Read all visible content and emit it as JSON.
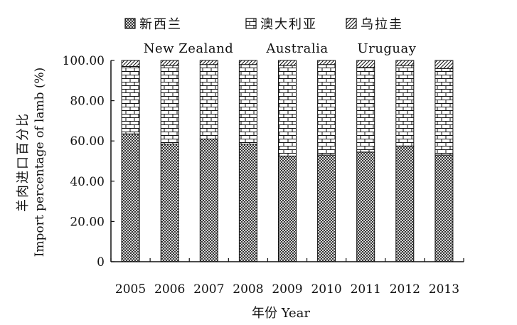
{
  "chart_data": {
    "type": "bar",
    "stacked": true,
    "categories": [
      "2005",
      "2006",
      "2007",
      "2008",
      "2009",
      "2010",
      "2011",
      "2012",
      "2013"
    ],
    "series": [
      {
        "name": "新西兰",
        "name_en": "New Zealand",
        "pattern": "crosshatch",
        "values": [
          63.5,
          58.5,
          61.0,
          58.5,
          52.5,
          53.0,
          54.5,
          57.5,
          53.0
        ]
      },
      {
        "name": "澳大利亚",
        "name_en": "Australia",
        "pattern": "brick",
        "values": [
          33.5,
          39.0,
          37.0,
          39.5,
          45.0,
          45.0,
          42.0,
          40.0,
          43.0
        ]
      },
      {
        "name": "乌拉圭",
        "name_en": "Uruguay",
        "pattern": "diagonal",
        "values": [
          3.0,
          2.5,
          2.0,
          2.0,
          2.5,
          2.0,
          3.5,
          2.5,
          4.0
        ]
      }
    ],
    "xlabel": "年份 Year",
    "ylabel_cn": "羊肉进口百分比",
    "ylabel_en": "Import percentage of lamb (%)",
    "yticks": [
      "0",
      "20.00",
      "40.00",
      "60.00",
      "80.00",
      "100.00"
    ],
    "ylim": [
      0,
      100
    ],
    "grid": false,
    "legend_position": "top"
  }
}
